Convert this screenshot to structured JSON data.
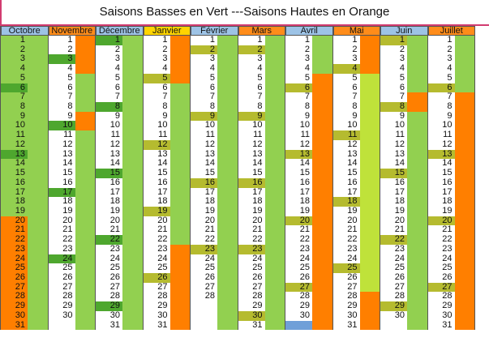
{
  "title": "Saisons Basses en Vert ---Saisons Hautes en Orange",
  "colors": {
    "green": "#92d050",
    "dark_green": "#4ea72e",
    "orange": "#ff7f00",
    "olive": "#b5bb2f",
    "lime": "#bfe23a",
    "blue_header": "#9dc3e6",
    "blue_cell": "#6f9fd8",
    "grey": "#d9d9d9"
  },
  "months": [
    {
      "name": "Octobre",
      "header": "blue",
      "days": 31,
      "fill": [
        [
          "G",
          1,
          31
        ]
      ],
      "numfill": [
        [
          "G",
          1,
          19
        ],
        [
          "DG",
          6,
          6
        ],
        [
          "DG",
          13,
          13
        ],
        [
          "DG",
          20,
          20
        ],
        [
          "DG",
          27,
          27
        ],
        [
          "O",
          20,
          31
        ]
      ]
    },
    {
      "name": "Novembre",
      "header": "orange",
      "days": 30,
      "fill": [
        [
          "O",
          1,
          4
        ],
        [
          "G",
          5,
          9
        ],
        [
          "O",
          9,
          11
        ],
        [
          "G",
          11,
          31
        ]
      ],
      "numfill": [
        [
          "DG",
          3,
          3
        ],
        [
          "DG",
          10,
          10
        ],
        [
          "DG",
          17,
          17
        ],
        [
          "DG",
          24,
          24
        ]
      ]
    },
    {
      "name": "Décembre",
      "header": "blue",
      "days": 31,
      "fill": [
        [
          "G",
          1,
          31
        ]
      ],
      "numfill": [
        [
          "DG",
          1,
          1
        ],
        [
          "DG",
          8,
          8
        ],
        [
          "DG",
          15,
          15
        ],
        [
          "DG",
          22,
          22
        ],
        [
          "DG",
          29,
          29
        ]
      ]
    },
    {
      "name": "Janvier",
      "header": "yellow",
      "days": 31,
      "fill": [
        [
          "O",
          1,
          5
        ],
        [
          "G",
          6,
          23
        ],
        [
          "O",
          23,
          31
        ]
      ],
      "numfill": [
        [
          "OL",
          5,
          5
        ],
        [
          "OL",
          12,
          12
        ],
        [
          "OL",
          19,
          19
        ],
        [
          "OL",
          26,
          26
        ]
      ]
    },
    {
      "name": "Février",
      "header": "blue",
      "days": 28,
      "fill": [
        [
          "G",
          1,
          31
        ]
      ],
      "numfill": [
        [
          "OL",
          2,
          2
        ],
        [
          "OL",
          9,
          9
        ],
        [
          "OL",
          16,
          16
        ],
        [
          "OL",
          23,
          23
        ]
      ]
    },
    {
      "name": "Mars",
      "header": "orange",
      "days": 31,
      "fill": [
        [
          "G",
          1,
          31
        ]
      ],
      "numfill": [
        [
          "OL",
          2,
          2
        ],
        [
          "OL",
          9,
          9
        ],
        [
          "OL",
          16,
          16
        ],
        [
          "OL",
          23,
          23
        ],
        [
          "OL",
          30,
          30
        ]
      ]
    },
    {
      "name": "Avril",
      "header": "blue",
      "days": 30,
      "fill": [
        [
          "G",
          1,
          5
        ],
        [
          "O",
          5,
          31
        ]
      ],
      "numfill": [
        [
          "OL",
          6,
          6
        ],
        [
          "OL",
          13,
          13
        ],
        [
          "OL",
          20,
          20
        ],
        [
          "OL",
          27,
          27
        ],
        [
          "B",
          31,
          31
        ]
      ]
    },
    {
      "name": "Mai",
      "header": "orange",
      "days": 31,
      "fill": [
        [
          "O",
          1,
          5
        ],
        [
          "L",
          5,
          28
        ],
        [
          "O",
          28,
          31
        ]
      ],
      "numfill": [
        [
          "OL",
          4,
          4
        ],
        [
          "OL",
          11,
          11
        ],
        [
          "OL",
          18,
          18
        ],
        [
          "OL",
          25,
          25
        ]
      ]
    },
    {
      "name": "Juin",
      "header": "blue",
      "days": 30,
      "fill": [
        [
          "G",
          1,
          7
        ],
        [
          "O",
          7,
          9
        ],
        [
          "G",
          9,
          31
        ]
      ],
      "numfill": [
        [
          "OL",
          1,
          1
        ],
        [
          "OL",
          8,
          8
        ],
        [
          "OL",
          15,
          15
        ],
        [
          "OL",
          22,
          22
        ],
        [
          "OL",
          29,
          29
        ]
      ]
    },
    {
      "name": "Juillet",
      "header": "orange",
      "days": 31,
      "fill": [
        [
          "G",
          1,
          7
        ],
        [
          "O",
          7,
          31
        ]
      ],
      "numfill": [
        [
          "OL",
          6,
          6
        ],
        [
          "OL",
          13,
          13
        ],
        [
          "OL",
          20,
          20
        ],
        [
          "OL",
          27,
          27
        ]
      ]
    }
  ]
}
